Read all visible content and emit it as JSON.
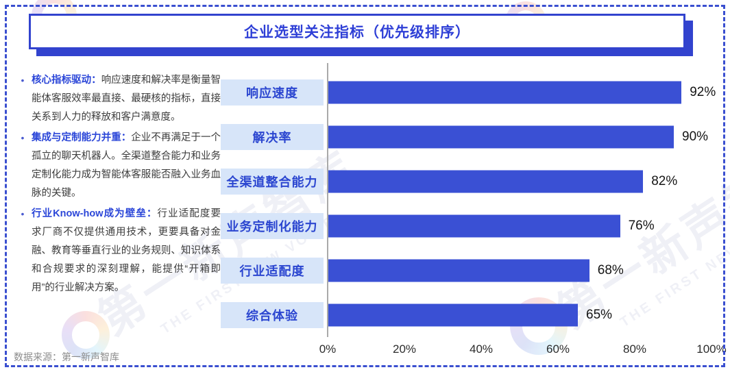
{
  "title": "企业选型关注指标（优先级排序）",
  "insights": [
    {
      "lead": "核心指标驱动：",
      "text": "响应速度和解决率是衡量智能体客服效率最直接、最硬核的指标，直接关系到人力的释放和客户满意度。"
    },
    {
      "lead": "集成与定制能力并重：",
      "text": "企业不再满足于一个孤立的聊天机器人。全渠道整合能力和业务定制化能力成为智能体客服能否融入业务血脉的关键。"
    },
    {
      "lead": "行业Know-how成为壁垒：",
      "text": "行业适配度要求厂商不仅提供通用技术，更要具备对金融、教育等垂直行业的业务规则、知识体系和合规要求的深刻理解，能提供“开箱即用”的行业解决方案。"
    }
  ],
  "chart_data": {
    "type": "bar",
    "orientation": "horizontal",
    "title": "企业选型关注指标（优先级排序）",
    "categories": [
      "响应速度",
      "解决率",
      "全渠道整合能力",
      "业务定制化能力",
      "行业适配度",
      "综合体验"
    ],
    "values": [
      92,
      90,
      82,
      76,
      68,
      65
    ],
    "value_labels": [
      "92%",
      "90%",
      "82%",
      "76%",
      "68%",
      "65%"
    ],
    "xlabel": "",
    "ylabel": "",
    "xlim": [
      0,
      100
    ],
    "x_ticks": [
      "0%",
      "20%",
      "40%",
      "60%",
      "80%",
      "100%"
    ],
    "grid": false,
    "legend": false,
    "bar_color": "#3A50D4",
    "category_label_bg": "#D7E5F9",
    "category_label_color": "#2B46D0"
  },
  "source": "数据来源：第一新声智库",
  "watermark": {
    "cn": "第一新声智库",
    "en": "THE FIRST NEW VOICE"
  },
  "colors": {
    "accent_blue": "#3243CE",
    "title_text": "#2E3FD6",
    "lead_text": "#2B46D8",
    "body_text": "#3C3C3C",
    "bar_blue": "#3A50D4",
    "axis_gray": "#A9A9A9",
    "frame_dash_blue": "#3A4FD0",
    "source_gray": "#8C8C8C"
  }
}
